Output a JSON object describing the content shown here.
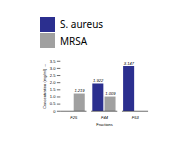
{
  "chart_data": {
    "type": "bar",
    "categories": [
      "F25",
      "F44",
      "F53"
    ],
    "series": [
      {
        "name": "S. aureus",
        "color": "#2B2F8F",
        "values": [
          0,
          1.922,
          3.147
        ]
      },
      {
        "name": "MRSA",
        "color": "#A0A0A0",
        "values": [
          1.219,
          1.009,
          0
        ]
      }
    ],
    "xlabel": "Fractions",
    "ylabel": "Concentration (mg/ml)",
    "ylim": [
      0,
      3.5
    ],
    "yticks": [
      0,
      0.5,
      {
        "value": 1.0,
        "label": "1.0"
      },
      1.5,
      {
        "value": 2.0,
        "label": "2.0"
      },
      2.5,
      {
        "value": 3.0,
        "label": "3.0"
      },
      3.5
    ],
    "data_labels": true,
    "legend": "top",
    "grid": false
  }
}
